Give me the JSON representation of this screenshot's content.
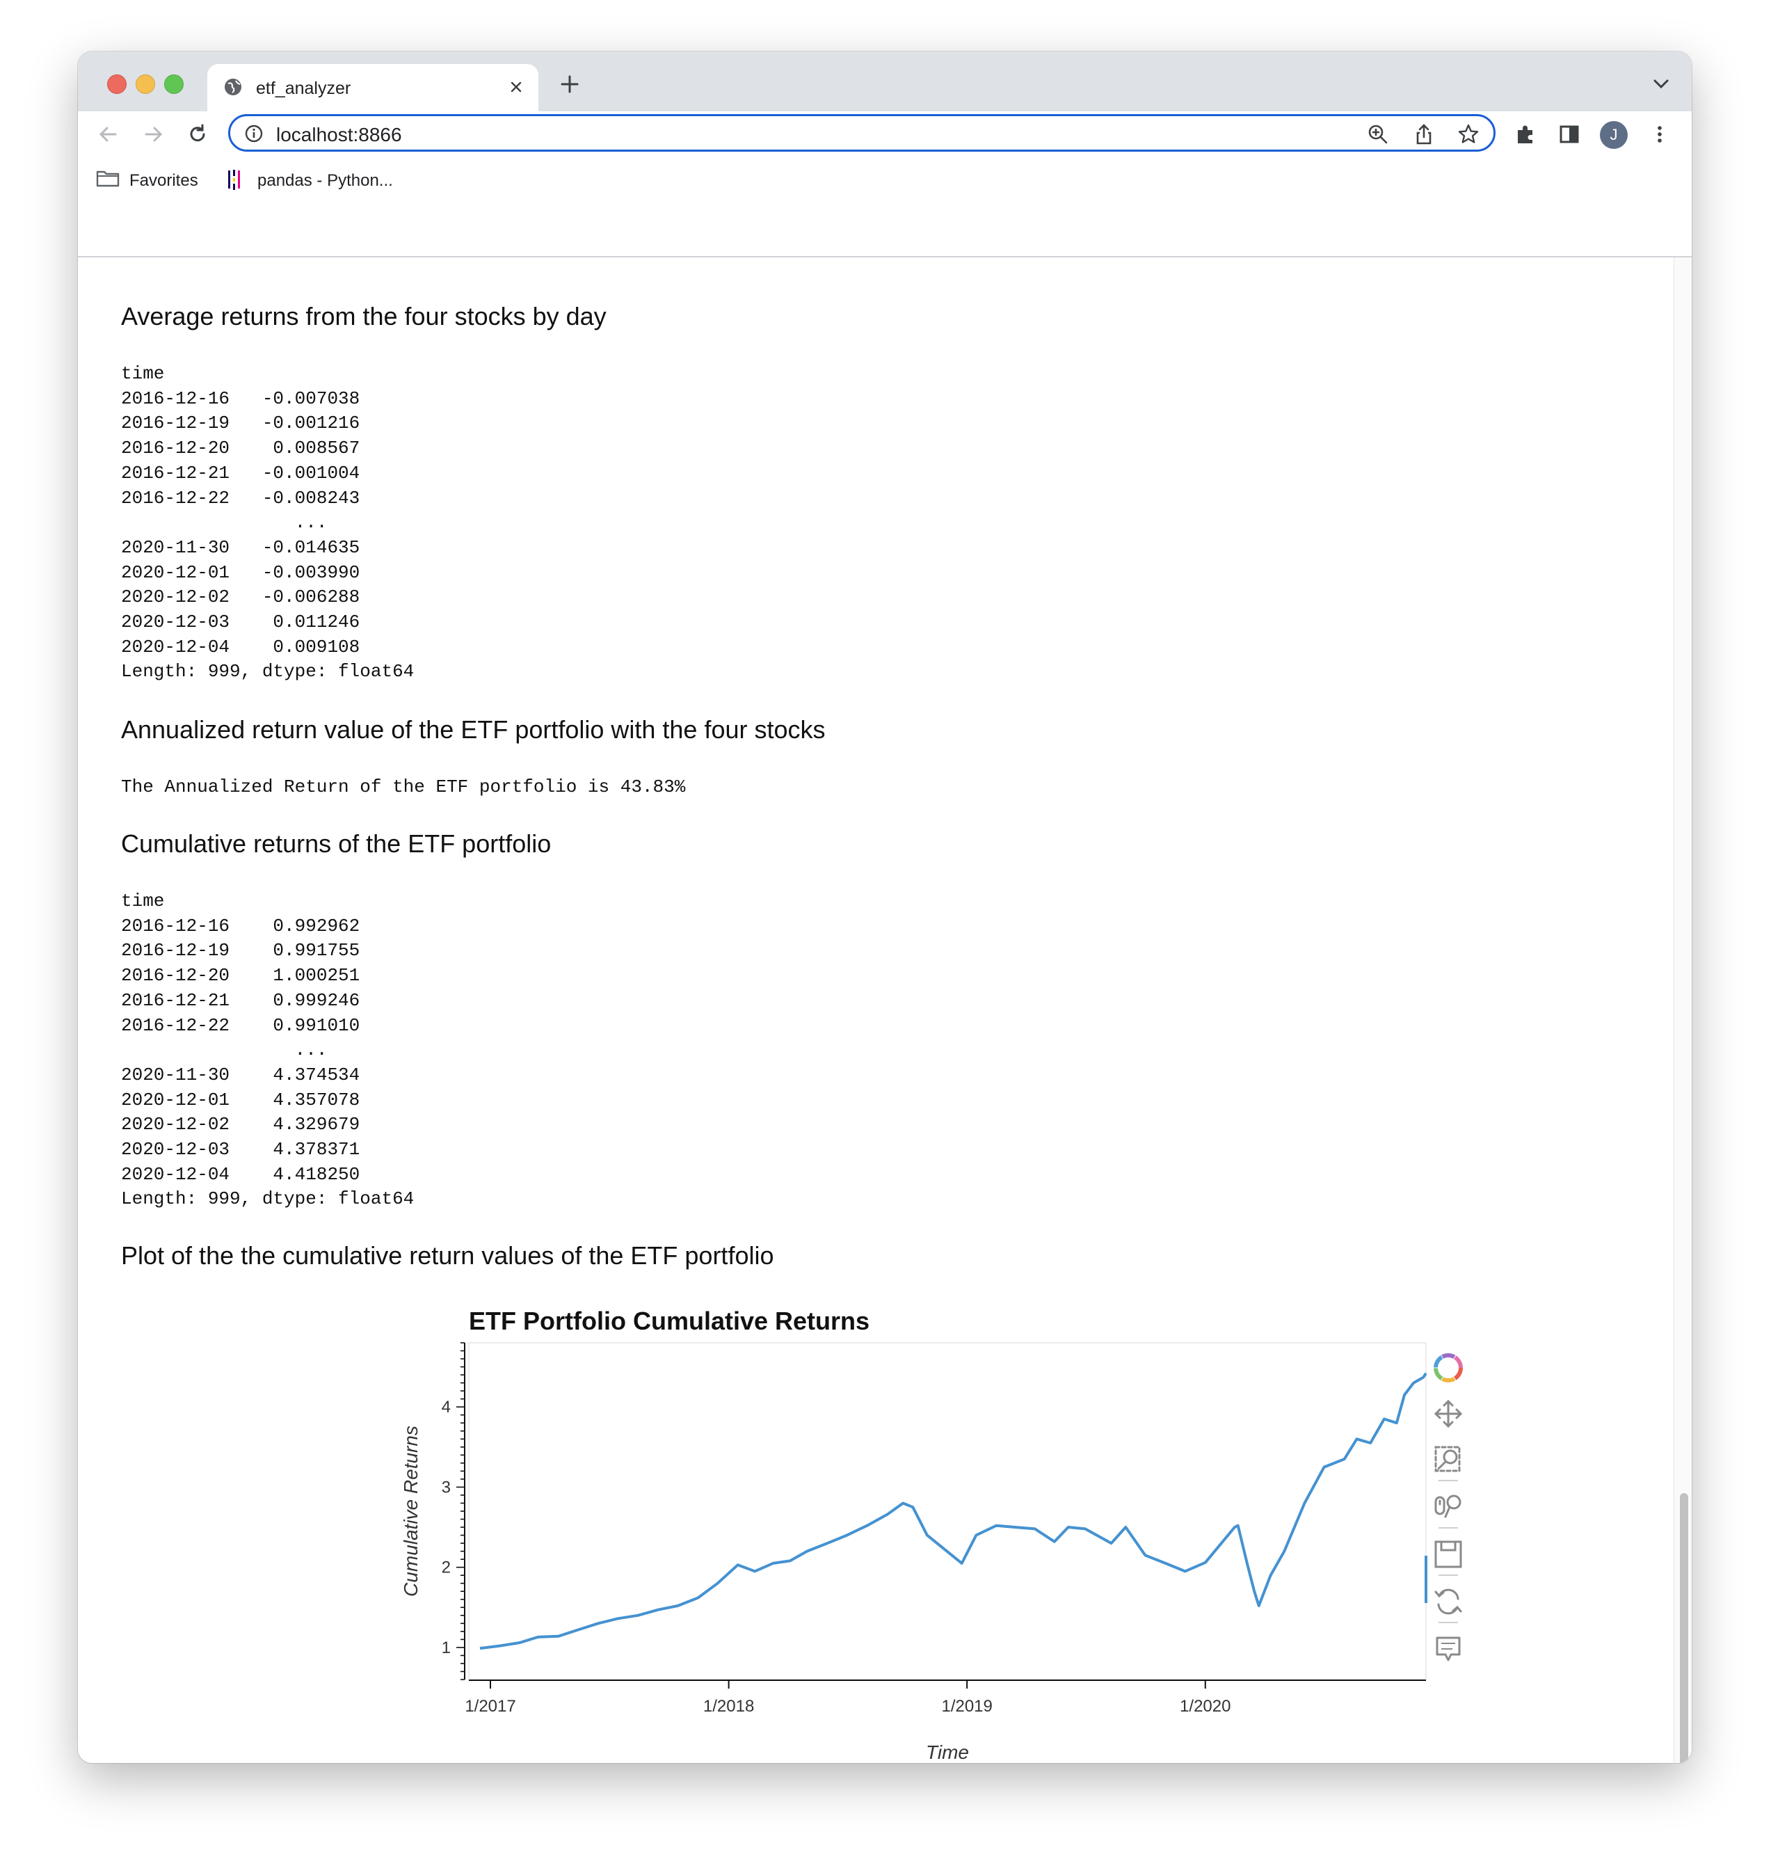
{
  "browser": {
    "tab_title": "etf_analyzer",
    "url": "localhost:8866",
    "profile_initial": "J",
    "bookmarks": [
      {
        "label": "Favorites",
        "icon": "folder-icon"
      },
      {
        "label": "pandas - Python...",
        "icon": "pandas-icon"
      }
    ]
  },
  "sections": {
    "avg_returns": {
      "heading": "Average returns from the four stocks by day",
      "output": "time\n2016-12-16   -0.007038\n2016-12-19   -0.001216\n2016-12-20    0.008567\n2016-12-21   -0.001004\n2016-12-22   -0.008243\n                ...   \n2020-11-30   -0.014635\n2020-12-01   -0.003990\n2020-12-02   -0.006288\n2020-12-03    0.011246\n2020-12-04    0.009108\nLength: 999, dtype: float64"
    },
    "annualized": {
      "heading": "Annualized return value of the ETF portfolio with the four stocks",
      "output": "The Annualized Return of the ETF portfolio is 43.83%"
    },
    "cumulative": {
      "heading": "Cumulative returns of the ETF portfolio",
      "output": "time\n2016-12-16    0.992962\n2016-12-19    0.991755\n2016-12-20    1.000251\n2016-12-21    0.999246\n2016-12-22    0.991010\n                ...   \n2020-11-30    4.374534\n2020-12-01    4.357078\n2020-12-02    4.329679\n2020-12-03    4.378371\n2020-12-04    4.418250\nLength: 999, dtype: float64"
    },
    "plot": {
      "heading": "Plot of the the cumulative return values of the ETF portfolio"
    }
  },
  "chart_data": {
    "type": "line",
    "title": "ETF Portfolio Cumulative Returns",
    "xlabel": "Time",
    "ylabel": "Cumulative Returns",
    "x_ticks": [
      "1/2017",
      "1/2018",
      "1/2019",
      "1/2020"
    ],
    "y_ticks": [
      "1",
      "2",
      "3",
      "4"
    ],
    "xlim": [
      "2016-12-16",
      "2020-12-04"
    ],
    "ylim": [
      0.6,
      4.8
    ],
    "line_color": "#4592d1",
    "grid": false,
    "series": [
      {
        "x": [
          "2016-12-16",
          "2017-01-15",
          "2017-02-15",
          "2017-03-15",
          "2017-04-15",
          "2017-05-15",
          "2017-06-15",
          "2017-07-15",
          "2017-08-15",
          "2017-09-15",
          "2017-10-15",
          "2017-11-15",
          "2017-12-15",
          "2018-01-15",
          "2018-02-10",
          "2018-03-10",
          "2018-04-05",
          "2018-05-01",
          "2018-06-01",
          "2018-07-01",
          "2018-08-01",
          "2018-09-01",
          "2018-09-25",
          "2018-10-10",
          "2018-11-01",
          "2018-12-24",
          "2019-01-15",
          "2019-02-15",
          "2019-03-15",
          "2019-04-15",
          "2019-05-15",
          "2019-06-05",
          "2019-07-01",
          "2019-08-10",
          "2019-09-01",
          "2019-10-01",
          "2019-11-01",
          "2019-12-01",
          "2020-01-01",
          "2020-02-15",
          "2020-02-20",
          "2020-03-05",
          "2020-03-16",
          "2020-03-23",
          "2020-04-10",
          "2020-05-01",
          "2020-06-01",
          "2020-07-01",
          "2020-08-01",
          "2020-08-20",
          "2020-09-10",
          "2020-10-01",
          "2020-10-20",
          "2020-11-01",
          "2020-11-15",
          "2020-11-30",
          "2020-12-04"
        ],
        "values": [
          0.99,
          1.02,
          1.06,
          1.13,
          1.14,
          1.22,
          1.3,
          1.36,
          1.4,
          1.47,
          1.52,
          1.62,
          1.8,
          2.03,
          1.95,
          2.05,
          2.08,
          2.2,
          2.3,
          2.4,
          2.52,
          2.66,
          2.8,
          2.75,
          2.4,
          2.05,
          2.4,
          2.52,
          2.5,
          2.48,
          2.32,
          2.5,
          2.48,
          2.3,
          2.5,
          2.15,
          2.05,
          1.95,
          2.06,
          2.5,
          2.52,
          2.05,
          1.7,
          1.52,
          1.9,
          2.2,
          2.8,
          3.25,
          3.35,
          3.6,
          3.55,
          3.85,
          3.8,
          4.15,
          4.3,
          4.37,
          4.42
        ]
      }
    ]
  },
  "chart_toolbar": {
    "tools": [
      "bokeh-logo-icon",
      "pan-icon",
      "box-zoom-icon",
      "wheel-zoom-icon",
      "save-icon",
      "reset-icon",
      "hover-icon"
    ]
  }
}
